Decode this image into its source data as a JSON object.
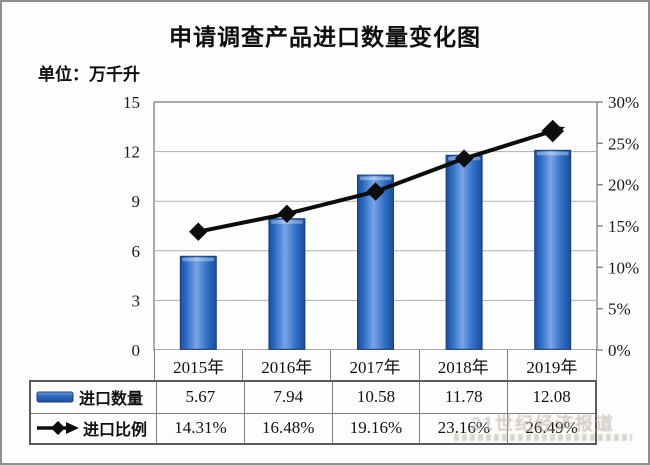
{
  "header": {
    "title": "申请调查产品进口数量变化图",
    "unit_label": "单位：万千升"
  },
  "chart_data": {
    "type": "bar+line",
    "categories": [
      "2015年",
      "2016年",
      "2017年",
      "2018年",
      "2019年"
    ],
    "series": [
      {
        "name": "进口数量",
        "type": "bar",
        "axis": "left",
        "values": [
          5.67,
          7.94,
          10.58,
          11.78,
          12.08
        ]
      },
      {
        "name": "进口比例",
        "type": "line",
        "axis": "right",
        "unit": "%",
        "values": [
          14.31,
          16.48,
          19.16,
          23.16,
          26.49
        ]
      }
    ],
    "left_axis": {
      "min": 0,
      "max": 15,
      "step": 3,
      "ticks": [
        "0",
        "3",
        "6",
        "9",
        "12",
        "15"
      ]
    },
    "right_axis": {
      "min": 0,
      "max": 30,
      "step": 5,
      "ticks": [
        "0%",
        "5%",
        "10%",
        "15%",
        "20%",
        "25%",
        "30%"
      ]
    },
    "grid": true,
    "legend_position": "table-left",
    "title": "申请调查产品进口数量变化图",
    "ylabel_left": "万千升",
    "ylabel_right": "%"
  },
  "table": {
    "rows": [
      {
        "label": "进口数量",
        "values": [
          "5.67",
          "7.94",
          "10.58",
          "11.78",
          "12.08"
        ]
      },
      {
        "label": "进口比例",
        "values": [
          "14.31%",
          "16.48%",
          "19.16%",
          "23.16%",
          "26.49%"
        ]
      }
    ]
  },
  "watermark": {
    "text": "21世纪经济报道"
  },
  "colors": {
    "bar_main": "#2f6fc6",
    "bar_dark": "#1c4d9c",
    "bar_light": "#7aa4e6",
    "line": "#0d0d0d",
    "grid": "#b0b0b0",
    "plot_border": "#7f7f7f",
    "table_border": "#5a5a5a",
    "text": "#111111",
    "watermark": "#beb4a6"
  }
}
